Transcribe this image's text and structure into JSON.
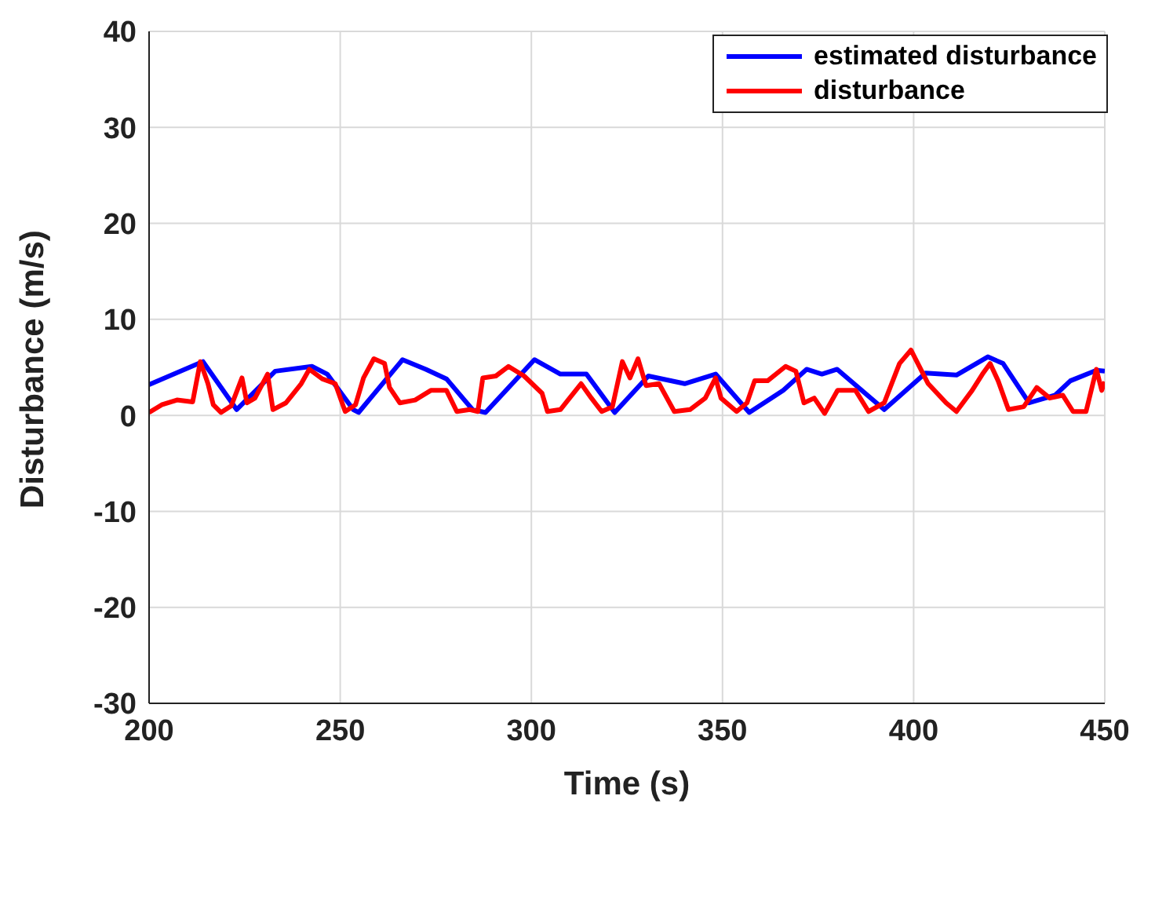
{
  "chart_data": {
    "type": "line",
    "xlabel": "Time (s)",
    "ylabel": "Disturbance (m/s)",
    "xlim": [
      200,
      450
    ],
    "xticks": [
      200,
      250,
      300,
      350,
      400,
      450
    ],
    "ylim": [
      -30,
      40
    ],
    "yticks": [
      -30,
      -20,
      -10,
      0,
      10,
      20,
      30,
      40
    ],
    "grid": true,
    "legend": "top right",
    "marker": "none",
    "line_style": "solid",
    "series": [
      {
        "name": "estimated disturbance",
        "color": "#0000ff",
        "x": [
          200,
          214.1,
          222.9,
          233,
          242.6,
          246.6,
          253.4,
          254.8,
          266.3,
          272.4,
          277.8,
          284.6,
          288,
          300.8,
          307.6,
          314.4,
          321.8,
          330.6,
          340.1,
          348.2,
          357,
          365.9,
          372,
          376,
          380,
          392.3,
          403.1,
          411.2,
          419.4,
          423.4,
          430.2,
          437,
          441,
          447.8,
          450
        ],
        "values": [
          3.2,
          5.6,
          0.6,
          4.6,
          5.1,
          4.3,
          0.6,
          0.3,
          5.8,
          4.8,
          3.8,
          0.6,
          0.3,
          5.8,
          4.3,
          4.3,
          0.3,
          4.1,
          3.3,
          4.3,
          0.3,
          2.6,
          4.8,
          4.3,
          4.8,
          0.6,
          4.4,
          4.2,
          6.1,
          5.4,
          1.3,
          2.1,
          3.6,
          4.7,
          4.6
        ]
      },
      {
        "name": "disturbance",
        "color": "#ff0000",
        "x": [
          200,
          203.3,
          207.3,
          211.4,
          213.4,
          215.4,
          216.8,
          218.8,
          221.5,
          224.3,
          225.6,
          227.7,
          231,
          232.4,
          235.8,
          239.8,
          241.9,
          245.3,
          248.7,
          251.3,
          254,
          256.1,
          258.8,
          261.6,
          262.9,
          265.6,
          269.6,
          273.7,
          277.8,
          280.5,
          283.9,
          286,
          287.3,
          290.7,
          294,
          298.1,
          302.8,
          304.2,
          307.6,
          313,
          315.7,
          318.4,
          321.2,
          323.8,
          325.8,
          327.9,
          330,
          333.4,
          337.4,
          341.5,
          345.5,
          348.2,
          349.6,
          353.7,
          356.4,
          358.4,
          361.8,
          366.5,
          369.2,
          371.3,
          374,
          376.7,
          380.1,
          384.8,
          388.2,
          392.3,
          396.3,
          399.3,
          401.1,
          403.8,
          408.5,
          411.2,
          415.3,
          418,
          420,
          422.1,
          424.8,
          428.8,
          432.2,
          435.6,
          439,
          441.7,
          445.1,
          447.8,
          449.2,
          450
        ],
        "values": [
          0.3,
          1.1,
          1.6,
          1.4,
          5.6,
          3.3,
          1.1,
          0.3,
          1,
          3.9,
          1.3,
          1.8,
          4.3,
          0.6,
          1.3,
          3.3,
          4.8,
          3.8,
          3.3,
          0.4,
          1.1,
          3.9,
          5.9,
          5.4,
          2.9,
          1.3,
          1.6,
          2.6,
          2.6,
          0.4,
          0.6,
          0.4,
          3.9,
          4.1,
          5.1,
          4.1,
          2.3,
          0.4,
          0.6,
          3.3,
          1.8,
          0.4,
          0.9,
          5.6,
          3.9,
          5.9,
          3.1,
          3.3,
          0.4,
          0.6,
          1.8,
          3.9,
          1.8,
          0.4,
          1.3,
          3.6,
          3.6,
          5.1,
          4.6,
          1.3,
          1.8,
          0.2,
          2.6,
          2.6,
          0.4,
          1.3,
          5.4,
          6.8,
          5.4,
          3.3,
          1.3,
          0.4,
          2.6,
          4.3,
          5.4,
          3.6,
          0.6,
          0.9,
          2.9,
          1.8,
          2.1,
          0.4,
          0.4,
          4.8,
          2.6,
          3.5
        ]
      }
    ]
  }
}
